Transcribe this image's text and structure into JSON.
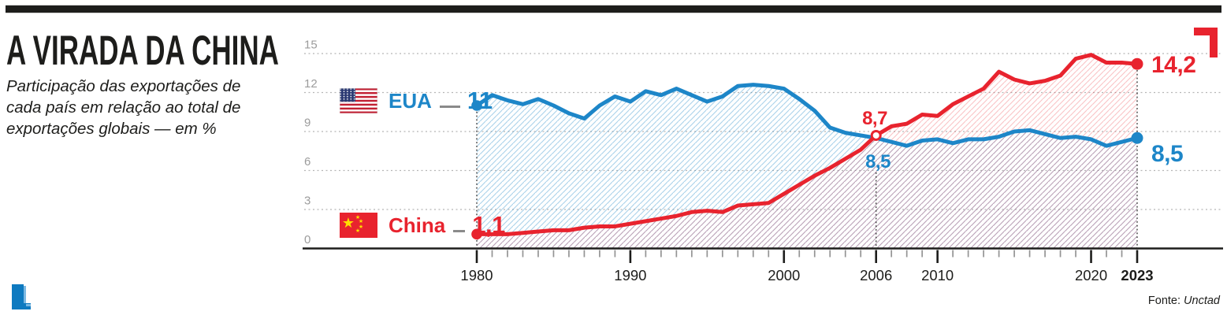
{
  "header": {
    "title": "A VIRADA DA CHINA",
    "subtitle": "Participação das exportações de cada país em relação ao total de exportações globais — em %"
  },
  "legend": {
    "eua": {
      "label": "EUA",
      "start_value_label": "11"
    },
    "china": {
      "label": "China",
      "start_value_label": "1,1"
    }
  },
  "icons": {
    "legend_eua_flag": "usa-flag",
    "legend_china_flag": "china-flag",
    "top_right_mark": "red-corner-bracket",
    "bottom_left_mark": "blue-corner-bracket"
  },
  "colors": {
    "blue": "#1d86c8",
    "red": "#e8232e",
    "black": "#1d1d1b",
    "grid_gray": "#b5b5b5",
    "axis_label_gray": "#9c9c9c"
  },
  "footer": {
    "source_prefix": "Fonte: ",
    "source_name": "Unctad"
  },
  "chart_data": {
    "type": "line",
    "title": "A VIRADA DA CHINA",
    "subtitle": "Participação das exportações de cada país em relação ao total de exportações globais — em %",
    "unit": "%",
    "x_start_year": 1980,
    "x_end_year": 2023,
    "ylim": [
      0,
      15
    ],
    "y_ticks": [
      0,
      3,
      6,
      9,
      12,
      15
    ],
    "x_major_ticks": [
      1980,
      1990,
      2000,
      2006,
      2010,
      2020,
      2023
    ],
    "x_tick_labels": [
      "1980",
      "1990",
      "2000",
      "2006",
      "2010",
      "2020",
      "2023"
    ],
    "grid": "dotted-horizontal",
    "legend_position": "on-chart-left",
    "series": [
      {
        "name": "EUA",
        "color": "#1d86c8",
        "values": [
          11.0,
          11.8,
          11.4,
          11.1,
          11.5,
          11.0,
          10.4,
          10.0,
          11.0,
          11.7,
          11.3,
          12.1,
          11.8,
          12.3,
          11.8,
          11.3,
          11.7,
          12.5,
          12.6,
          12.5,
          12.3,
          11.5,
          10.6,
          9.3,
          8.9,
          8.7,
          8.5,
          8.2,
          7.9,
          8.3,
          8.4,
          8.1,
          8.4,
          8.4,
          8.6,
          9.0,
          9.1,
          8.8,
          8.5,
          8.6,
          8.4,
          7.9,
          8.2,
          8.5
        ]
      },
      {
        "name": "China",
        "color": "#e8232e",
        "values": [
          1.1,
          1.1,
          1.1,
          1.2,
          1.3,
          1.4,
          1.4,
          1.6,
          1.7,
          1.7,
          1.9,
          2.1,
          2.3,
          2.5,
          2.8,
          2.9,
          2.8,
          3.3,
          3.4,
          3.5,
          4.2,
          4.9,
          5.6,
          6.2,
          6.9,
          7.6,
          8.7,
          9.4,
          9.6,
          10.3,
          10.2,
          11.1,
          11.7,
          12.3,
          13.6,
          13.0,
          12.7,
          12.9,
          13.3,
          14.6,
          14.9,
          14.3,
          14.3,
          14.2
        ]
      }
    ],
    "annotations": [
      {
        "series": "EUA",
        "year": 1980,
        "label": "11"
      },
      {
        "series": "China",
        "year": 1980,
        "label": "1,1"
      },
      {
        "series": "China",
        "year": 2006,
        "label": "8,7"
      },
      {
        "series": "EUA",
        "year": 2006,
        "label": "8,5"
      },
      {
        "series": "China",
        "year": 2023,
        "label": "14,2"
      },
      {
        "series": "EUA",
        "year": 2023,
        "label": "8,5"
      }
    ],
    "dotted_marker_years": [
      1980,
      2006,
      2023
    ]
  }
}
